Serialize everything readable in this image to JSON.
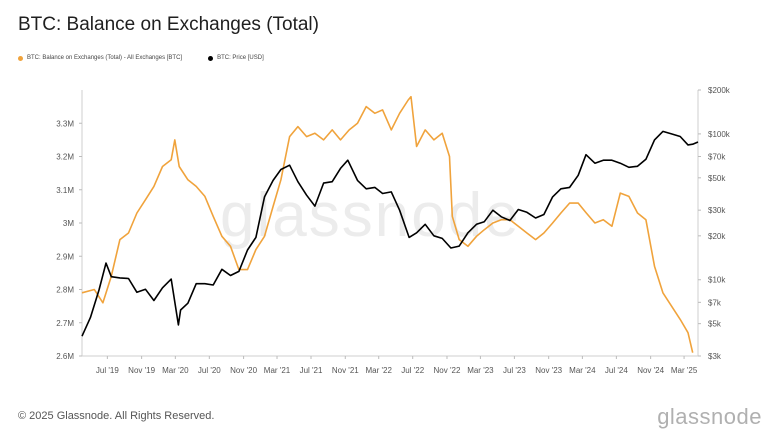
{
  "page": {
    "title": "BTC: Balance on Exchanges (Total)",
    "footer": "© 2025 Glassnode. All Rights Reserved.",
    "brand": "glassnode",
    "watermark": "glassnode"
  },
  "legend": [
    {
      "label": "BTC: Balance on Exchanges (Total) - All Exchanges [BTC]",
      "color": "#f0a33c"
    },
    {
      "label": "BTC: Price [USD]",
      "color": "#000000"
    }
  ],
  "chart_data": {
    "type": "line",
    "title": "BTC: Balance on Exchanges (Total)",
    "x_tick_labels": [
      "Jul '19",
      "Nov '19",
      "Mar '20",
      "Jul '20",
      "Nov '20",
      "Mar '21",
      "Jul '21",
      "Nov '21",
      "Mar '22",
      "Jul '22",
      "Nov '22",
      "Mar '23",
      "Jul '23",
      "Nov '23",
      "Mar '24",
      "Jul '24",
      "Nov '24",
      "Mar '25"
    ],
    "x_range": [
      "2019-04-01",
      "2025-04-20"
    ],
    "y_left": {
      "range": [
        2600000,
        3400000
      ],
      "ticks": [
        "2.6M",
        "2.7M",
        "2.8M",
        "2.9M",
        "3M",
        "3.1M",
        "3.2M",
        "3.3M"
      ],
      "tick_values": [
        2600000,
        2700000,
        2800000,
        2900000,
        3000000,
        3100000,
        3200000,
        3300000
      ]
    },
    "y_right": {
      "scale": "log",
      "range": [
        3000,
        200000
      ],
      "ticks": [
        "$3k",
        "$5k",
        "$7k",
        "$10k",
        "$20k",
        "$30k",
        "$50k",
        "$70k",
        "$100k",
        "$200k"
      ],
      "tick_values": [
        3000,
        5000,
        7000,
        10000,
        20000,
        30000,
        50000,
        70000,
        100000,
        200000
      ]
    },
    "series": [
      {
        "name": "BTC: Balance on Exchanges (Total) - All Exchanges [BTC]",
        "axis": "left",
        "color": "#f0a33c",
        "points": [
          [
            "2019-04-01",
            2790000
          ],
          [
            "2019-05-15",
            2800000
          ],
          [
            "2019-06-15",
            2760000
          ],
          [
            "2019-07-15",
            2840000
          ],
          [
            "2019-08-15",
            2950000
          ],
          [
            "2019-09-15",
            2970000
          ],
          [
            "2019-10-15",
            3030000
          ],
          [
            "2019-11-15",
            3070000
          ],
          [
            "2019-12-15",
            3110000
          ],
          [
            "2020-01-15",
            3170000
          ],
          [
            "2020-02-15",
            3190000
          ],
          [
            "2020-02-28",
            3250000
          ],
          [
            "2020-03-15",
            3170000
          ],
          [
            "2020-04-15",
            3130000
          ],
          [
            "2020-05-15",
            3110000
          ],
          [
            "2020-06-15",
            3080000
          ],
          [
            "2020-07-15",
            3020000
          ],
          [
            "2020-08-15",
            2960000
          ],
          [
            "2020-09-15",
            2930000
          ],
          [
            "2020-10-15",
            2860000
          ],
          [
            "2020-11-15",
            2860000
          ],
          [
            "2020-12-15",
            2920000
          ],
          [
            "2021-01-15",
            2960000
          ],
          [
            "2021-02-15",
            3050000
          ],
          [
            "2021-03-15",
            3130000
          ],
          [
            "2021-04-15",
            3260000
          ],
          [
            "2021-05-15",
            3290000
          ],
          [
            "2021-06-15",
            3260000
          ],
          [
            "2021-07-15",
            3270000
          ],
          [
            "2021-08-15",
            3250000
          ],
          [
            "2021-09-15",
            3280000
          ],
          [
            "2021-10-15",
            3250000
          ],
          [
            "2021-11-15",
            3280000
          ],
          [
            "2021-12-15",
            3300000
          ],
          [
            "2022-01-15",
            3350000
          ],
          [
            "2022-02-15",
            3330000
          ],
          [
            "2022-03-15",
            3340000
          ],
          [
            "2022-04-15",
            3280000
          ],
          [
            "2022-05-15",
            3330000
          ],
          [
            "2022-06-15",
            3370000
          ],
          [
            "2022-06-25",
            3380000
          ],
          [
            "2022-07-15",
            3230000
          ],
          [
            "2022-08-15",
            3280000
          ],
          [
            "2022-09-15",
            3250000
          ],
          [
            "2022-10-15",
            3270000
          ],
          [
            "2022-11-10",
            3200000
          ],
          [
            "2022-11-20",
            3020000
          ],
          [
            "2022-12-15",
            2950000
          ],
          [
            "2023-01-15",
            2930000
          ],
          [
            "2023-02-15",
            2960000
          ],
          [
            "2023-03-15",
            2980000
          ],
          [
            "2023-04-15",
            3000000
          ],
          [
            "2023-05-15",
            3010000
          ],
          [
            "2023-06-15",
            3010000
          ],
          [
            "2023-07-15",
            2990000
          ],
          [
            "2023-08-15",
            2970000
          ],
          [
            "2023-09-15",
            2950000
          ],
          [
            "2023-10-15",
            2970000
          ],
          [
            "2023-11-15",
            3000000
          ],
          [
            "2023-12-15",
            3030000
          ],
          [
            "2024-01-15",
            3060000
          ],
          [
            "2024-02-15",
            3060000
          ],
          [
            "2024-03-15",
            3030000
          ],
          [
            "2024-04-15",
            3000000
          ],
          [
            "2024-05-15",
            3010000
          ],
          [
            "2024-06-15",
            2990000
          ],
          [
            "2024-07-15",
            3090000
          ],
          [
            "2024-08-15",
            3080000
          ],
          [
            "2024-09-15",
            3030000
          ],
          [
            "2024-10-15",
            3010000
          ],
          [
            "2024-11-15",
            2870000
          ],
          [
            "2024-12-15",
            2790000
          ],
          [
            "2025-01-15",
            2750000
          ],
          [
            "2025-02-15",
            2710000
          ],
          [
            "2025-03-15",
            2670000
          ],
          [
            "2025-04-01",
            2610000
          ]
        ]
      },
      {
        "name": "BTC: Price [USD]",
        "axis": "right",
        "color": "#000000",
        "points": [
          [
            "2019-04-01",
            4100
          ],
          [
            "2019-05-01",
            5500
          ],
          [
            "2019-06-01",
            8500
          ],
          [
            "2019-06-26",
            13000
          ],
          [
            "2019-07-15",
            10500
          ],
          [
            "2019-08-15",
            10300
          ],
          [
            "2019-09-15",
            10200
          ],
          [
            "2019-10-15",
            8200
          ],
          [
            "2019-11-15",
            8600
          ],
          [
            "2019-12-15",
            7200
          ],
          [
            "2020-01-15",
            8800
          ],
          [
            "2020-02-15",
            10100
          ],
          [
            "2020-03-12",
            4900
          ],
          [
            "2020-03-20",
            6200
          ],
          [
            "2020-04-15",
            6900
          ],
          [
            "2020-05-15",
            9400
          ],
          [
            "2020-06-15",
            9400
          ],
          [
            "2020-07-15",
            9200
          ],
          [
            "2020-08-15",
            11800
          ],
          [
            "2020-09-15",
            10700
          ],
          [
            "2020-10-15",
            11400
          ],
          [
            "2020-11-15",
            16000
          ],
          [
            "2020-12-15",
            19500
          ],
          [
            "2021-01-15",
            37000
          ],
          [
            "2021-02-15",
            48000
          ],
          [
            "2021-03-15",
            57000
          ],
          [
            "2021-04-15",
            61000
          ],
          [
            "2021-05-15",
            47000
          ],
          [
            "2021-06-15",
            38000
          ],
          [
            "2021-07-15",
            32000
          ],
          [
            "2021-08-15",
            46000
          ],
          [
            "2021-09-15",
            47000
          ],
          [
            "2021-10-15",
            58000
          ],
          [
            "2021-11-10",
            66000
          ],
          [
            "2021-12-15",
            48000
          ],
          [
            "2022-01-15",
            42000
          ],
          [
            "2022-02-15",
            43000
          ],
          [
            "2022-03-15",
            39000
          ],
          [
            "2022-04-15",
            40000
          ],
          [
            "2022-05-15",
            30000
          ],
          [
            "2022-06-18",
            19500
          ],
          [
            "2022-07-15",
            21000
          ],
          [
            "2022-08-15",
            24000
          ],
          [
            "2022-09-15",
            20000
          ],
          [
            "2022-10-15",
            19200
          ],
          [
            "2022-11-15",
            16500
          ],
          [
            "2022-12-15",
            17000
          ],
          [
            "2023-01-15",
            21000
          ],
          [
            "2023-02-15",
            24000
          ],
          [
            "2023-03-15",
            25000
          ],
          [
            "2023-04-15",
            30000
          ],
          [
            "2023-05-15",
            27000
          ],
          [
            "2023-06-15",
            25500
          ],
          [
            "2023-07-15",
            30300
          ],
          [
            "2023-08-15",
            29000
          ],
          [
            "2023-09-15",
            26500
          ],
          [
            "2023-10-15",
            28000
          ],
          [
            "2023-11-15",
            37000
          ],
          [
            "2023-12-15",
            42000
          ],
          [
            "2024-01-15",
            43000
          ],
          [
            "2024-02-15",
            52000
          ],
          [
            "2024-03-14",
            72000
          ],
          [
            "2024-04-15",
            63000
          ],
          [
            "2024-05-15",
            66000
          ],
          [
            "2024-06-15",
            66000
          ],
          [
            "2024-07-15",
            63000
          ],
          [
            "2024-08-15",
            59000
          ],
          [
            "2024-09-15",
            60000
          ],
          [
            "2024-10-15",
            67000
          ],
          [
            "2024-11-15",
            91000
          ],
          [
            "2024-12-15",
            104000
          ],
          [
            "2025-01-15",
            100000
          ],
          [
            "2025-02-15",
            96000
          ],
          [
            "2025-03-15",
            84000
          ],
          [
            "2025-04-01",
            85000
          ],
          [
            "2025-04-20",
            88000
          ]
        ]
      }
    ],
    "grid": false,
    "legend_placement": "top-left"
  }
}
